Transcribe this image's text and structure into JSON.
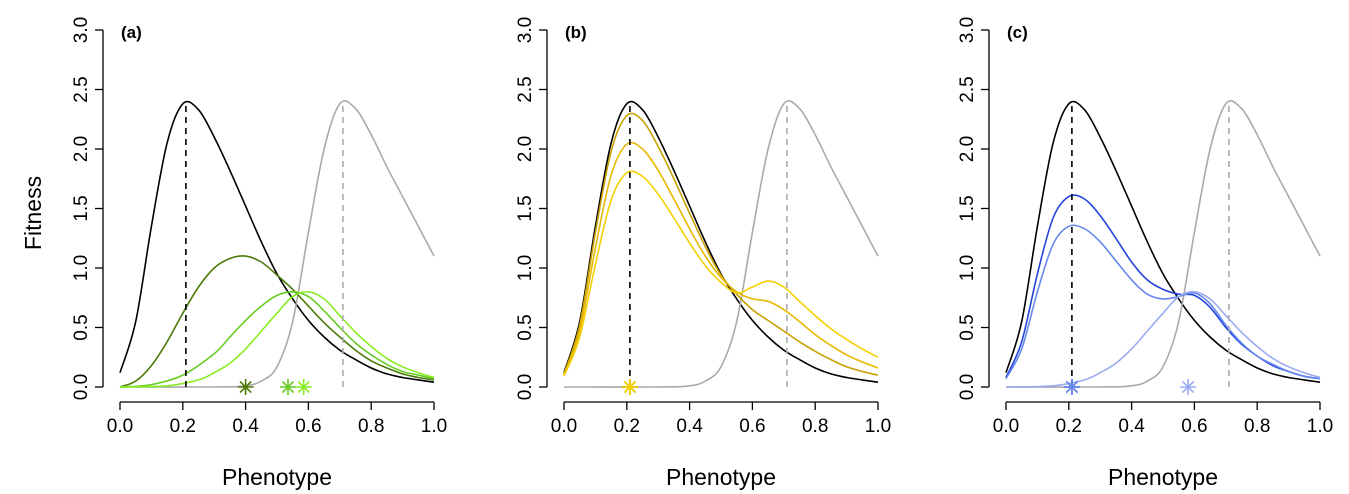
{
  "ylabel": "Fitness",
  "chart_data": [
    {
      "type": "line",
      "panel_label": "(a)",
      "xlabel": "Phenotype",
      "xlim": [
        0,
        1
      ],
      "ylim": [
        0,
        3
      ],
      "xticks": [
        "0.0",
        "0.2",
        "0.4",
        "0.6",
        "0.8",
        "1.0"
      ],
      "yticks": [
        "0.0",
        "0.5",
        "1.0",
        "1.5",
        "2.0",
        "2.5",
        "3.0"
      ],
      "series": [
        {
          "color": "#000000",
          "style": "solid",
          "x": [
            0,
            0.05,
            0.1,
            0.15,
            0.2,
            0.25,
            0.3,
            0.35,
            0.4,
            0.45,
            0.5,
            0.55,
            0.6,
            0.65,
            0.7,
            0.75,
            0.8,
            0.85,
            0.9,
            0.95,
            1.0
          ],
          "y": [
            0.12,
            0.55,
            1.35,
            2.05,
            2.38,
            2.33,
            2.1,
            1.82,
            1.52,
            1.22,
            0.95,
            0.74,
            0.56,
            0.42,
            0.31,
            0.23,
            0.16,
            0.11,
            0.08,
            0.06,
            0.04
          ]
        },
        {
          "color": "#aaaaaa",
          "style": "solid",
          "x": [
            0,
            0.3,
            0.4,
            0.45,
            0.5,
            0.55,
            0.6,
            0.65,
            0.7,
            0.75,
            0.8,
            0.85,
            0.9,
            0.95,
            1.0
          ],
          "y": [
            0,
            0,
            0.01,
            0.05,
            0.17,
            0.55,
            1.3,
            2.0,
            2.38,
            2.34,
            2.12,
            1.85,
            1.6,
            1.35,
            1.1
          ]
        },
        {
          "color": "#4d7a0a",
          "style": "solid",
          "x": [
            0,
            0.05,
            0.1,
            0.15,
            0.2,
            0.25,
            0.3,
            0.35,
            0.4,
            0.45,
            0.5,
            0.55,
            0.6,
            0.65,
            0.7,
            0.75,
            0.8,
            0.85,
            0.9,
            0.95,
            1.0
          ],
          "y": [
            0.0,
            0.05,
            0.18,
            0.38,
            0.62,
            0.84,
            1.0,
            1.08,
            1.1,
            1.05,
            0.94,
            0.82,
            0.68,
            0.54,
            0.42,
            0.31,
            0.22,
            0.16,
            0.11,
            0.08,
            0.06
          ]
        },
        {
          "color": "#66cc22",
          "style": "solid",
          "x": [
            0,
            0.1,
            0.2,
            0.3,
            0.35,
            0.4,
            0.45,
            0.5,
            0.55,
            0.6,
            0.65,
            0.7,
            0.75,
            0.8,
            0.85,
            0.9,
            0.95,
            1.0
          ],
          "y": [
            0,
            0.02,
            0.1,
            0.28,
            0.42,
            0.56,
            0.68,
            0.77,
            0.8,
            0.76,
            0.64,
            0.5,
            0.37,
            0.27,
            0.19,
            0.13,
            0.1,
            0.07
          ]
        },
        {
          "color": "#88ee22",
          "style": "solid",
          "x": [
            0,
            0.15,
            0.25,
            0.3,
            0.35,
            0.4,
            0.45,
            0.5,
            0.55,
            0.6,
            0.65,
            0.7,
            0.75,
            0.8,
            0.85,
            0.9,
            0.95,
            1.0
          ],
          "y": [
            0,
            0.01,
            0.06,
            0.12,
            0.2,
            0.32,
            0.47,
            0.62,
            0.76,
            0.8,
            0.74,
            0.6,
            0.46,
            0.34,
            0.24,
            0.17,
            0.12,
            0.08
          ]
        },
        {
          "color": "#000000",
          "style": "dashed",
          "x": [
            0.21,
            0.21
          ],
          "y": [
            0,
            2.4
          ]
        },
        {
          "color": "#aaaaaa",
          "style": "dashed",
          "x": [
            0.71,
            0.71
          ],
          "y": [
            0,
            2.4
          ]
        }
      ],
      "markers": [
        {
          "x": 0.4,
          "y": 0,
          "color": "#4d7a0a"
        },
        {
          "x": 0.535,
          "y": 0,
          "color": "#66cc22"
        },
        {
          "x": 0.585,
          "y": 0,
          "color": "#88ee22"
        }
      ]
    },
    {
      "type": "line",
      "panel_label": "(b)",
      "xlabel": "Phenotype",
      "xlim": [
        0,
        1
      ],
      "ylim": [
        0,
        3
      ],
      "xticks": [
        "0.0",
        "0.2",
        "0.4",
        "0.6",
        "0.8",
        "1.0"
      ],
      "yticks": [
        "0.0",
        "0.5",
        "1.0",
        "1.5",
        "2.0",
        "2.5",
        "3.0"
      ],
      "series": [
        {
          "color": "#000000",
          "style": "solid",
          "x": [
            0,
            0.05,
            0.1,
            0.15,
            0.2,
            0.25,
            0.3,
            0.35,
            0.4,
            0.45,
            0.5,
            0.55,
            0.6,
            0.65,
            0.7,
            0.75,
            0.8,
            0.85,
            0.9,
            0.95,
            1.0
          ],
          "y": [
            0.12,
            0.55,
            1.35,
            2.05,
            2.38,
            2.33,
            2.1,
            1.82,
            1.52,
            1.22,
            0.95,
            0.74,
            0.56,
            0.42,
            0.31,
            0.23,
            0.16,
            0.11,
            0.08,
            0.06,
            0.04
          ]
        },
        {
          "color": "#aaaaaa",
          "style": "solid",
          "x": [
            0,
            0.3,
            0.4,
            0.45,
            0.5,
            0.55,
            0.6,
            0.65,
            0.7,
            0.75,
            0.8,
            0.85,
            0.9,
            0.95,
            1.0
          ],
          "y": [
            0,
            0,
            0.01,
            0.05,
            0.17,
            0.55,
            1.3,
            2.0,
            2.38,
            2.34,
            2.12,
            1.85,
            1.6,
            1.35,
            1.1
          ]
        },
        {
          "color": "#c9a000",
          "style": "solid",
          "x": [
            0,
            0.05,
            0.1,
            0.15,
            0.2,
            0.25,
            0.3,
            0.35,
            0.4,
            0.45,
            0.5,
            0.55,
            0.6,
            0.65,
            0.7,
            0.75,
            0.8,
            0.85,
            0.9,
            0.95,
            1.0
          ],
          "y": [
            0.11,
            0.52,
            1.3,
            1.98,
            2.28,
            2.24,
            2.02,
            1.75,
            1.46,
            1.18,
            0.94,
            0.78,
            0.65,
            0.56,
            0.47,
            0.38,
            0.3,
            0.23,
            0.17,
            0.13,
            0.1
          ]
        },
        {
          "color": "#e8b800",
          "style": "solid",
          "x": [
            0,
            0.05,
            0.1,
            0.15,
            0.2,
            0.25,
            0.3,
            0.35,
            0.4,
            0.45,
            0.5,
            0.55,
            0.6,
            0.65,
            0.7,
            0.75,
            0.8,
            0.85,
            0.9,
            0.95,
            1.0
          ],
          "y": [
            0.1,
            0.47,
            1.17,
            1.78,
            2.04,
            2.0,
            1.82,
            1.58,
            1.33,
            1.1,
            0.92,
            0.8,
            0.74,
            0.72,
            0.65,
            0.55,
            0.44,
            0.35,
            0.27,
            0.21,
            0.16
          ]
        },
        {
          "color": "#f5d000",
          "style": "solid",
          "x": [
            0,
            0.05,
            0.1,
            0.15,
            0.2,
            0.25,
            0.3,
            0.35,
            0.4,
            0.45,
            0.5,
            0.55,
            0.6,
            0.65,
            0.7,
            0.75,
            0.8,
            0.85,
            0.9,
            0.95,
            1.0
          ],
          "y": [
            0.09,
            0.42,
            1.03,
            1.57,
            1.8,
            1.77,
            1.62,
            1.42,
            1.21,
            1.02,
            0.88,
            0.79,
            0.84,
            0.89,
            0.84,
            0.72,
            0.6,
            0.49,
            0.4,
            0.32,
            0.25
          ]
        },
        {
          "color": "#000000",
          "style": "dashed",
          "x": [
            0.21,
            0.21
          ],
          "y": [
            0,
            2.4
          ]
        },
        {
          "color": "#aaaaaa",
          "style": "dashed",
          "x": [
            0.71,
            0.71
          ],
          "y": [
            0,
            2.4
          ]
        }
      ],
      "markers": [
        {
          "x": 0.21,
          "y": 0,
          "color": "#c9a000"
        },
        {
          "x": 0.21,
          "y": 0,
          "color": "#e8b800"
        },
        {
          "x": 0.21,
          "y": 0,
          "color": "#f5d000"
        }
      ]
    },
    {
      "type": "line",
      "panel_label": "(c)",
      "xlabel": "Phenotype",
      "xlim": [
        0,
        1
      ],
      "ylim": [
        0,
        3
      ],
      "xticks": [
        "0.0",
        "0.2",
        "0.4",
        "0.6",
        "0.8",
        "1.0"
      ],
      "yticks": [
        "0.0",
        "0.5",
        "1.0",
        "1.5",
        "2.0",
        "2.5",
        "3.0"
      ],
      "series": [
        {
          "color": "#000000",
          "style": "solid",
          "x": [
            0,
            0.05,
            0.1,
            0.15,
            0.2,
            0.25,
            0.3,
            0.35,
            0.4,
            0.45,
            0.5,
            0.55,
            0.6,
            0.65,
            0.7,
            0.75,
            0.8,
            0.85,
            0.9,
            0.95,
            1.0
          ],
          "y": [
            0.12,
            0.55,
            1.35,
            2.05,
            2.38,
            2.33,
            2.1,
            1.82,
            1.52,
            1.22,
            0.95,
            0.74,
            0.56,
            0.42,
            0.31,
            0.23,
            0.16,
            0.11,
            0.08,
            0.06,
            0.04
          ]
        },
        {
          "color": "#aaaaaa",
          "style": "solid",
          "x": [
            0,
            0.3,
            0.4,
            0.45,
            0.5,
            0.55,
            0.6,
            0.65,
            0.7,
            0.75,
            0.8,
            0.85,
            0.9,
            0.95,
            1.0
          ],
          "y": [
            0,
            0,
            0.01,
            0.05,
            0.17,
            0.55,
            1.3,
            2.0,
            2.38,
            2.34,
            2.12,
            1.85,
            1.6,
            1.35,
            1.1
          ]
        },
        {
          "color": "#2244dd",
          "style": "solid",
          "x": [
            0,
            0.05,
            0.1,
            0.15,
            0.2,
            0.25,
            0.3,
            0.35,
            0.4,
            0.45,
            0.5,
            0.55,
            0.6,
            0.65,
            0.7,
            0.75,
            0.8,
            0.85,
            0.9,
            0.95,
            1.0
          ],
          "y": [
            0.08,
            0.38,
            0.95,
            1.42,
            1.6,
            1.58,
            1.44,
            1.25,
            1.05,
            0.9,
            0.82,
            0.78,
            0.77,
            0.67,
            0.5,
            0.36,
            0.26,
            0.18,
            0.13,
            0.09,
            0.07
          ]
        },
        {
          "color": "#6688ee",
          "style": "solid",
          "x": [
            0,
            0.05,
            0.1,
            0.15,
            0.2,
            0.25,
            0.3,
            0.35,
            0.4,
            0.45,
            0.5,
            0.55,
            0.6,
            0.65,
            0.7,
            0.75,
            0.8,
            0.85,
            0.9,
            0.95,
            1.0
          ],
          "y": [
            0.07,
            0.32,
            0.8,
            1.2,
            1.35,
            1.33,
            1.22,
            1.06,
            0.9,
            0.78,
            0.74,
            0.76,
            0.79,
            0.7,
            0.52,
            0.37,
            0.26,
            0.19,
            0.13,
            0.09,
            0.07
          ]
        },
        {
          "color": "#99aaf0",
          "style": "solid",
          "x": [
            0,
            0.15,
            0.25,
            0.3,
            0.35,
            0.4,
            0.45,
            0.5,
            0.55,
            0.6,
            0.65,
            0.7,
            0.75,
            0.8,
            0.85,
            0.9,
            0.95,
            1.0
          ],
          "y": [
            0,
            0.01,
            0.06,
            0.12,
            0.2,
            0.32,
            0.47,
            0.62,
            0.76,
            0.8,
            0.74,
            0.6,
            0.46,
            0.34,
            0.24,
            0.17,
            0.12,
            0.08
          ]
        },
        {
          "color": "#000000",
          "style": "dashed",
          "x": [
            0.21,
            0.21
          ],
          "y": [
            0,
            2.4
          ]
        },
        {
          "color": "#aaaaaa",
          "style": "dashed",
          "x": [
            0.71,
            0.71
          ],
          "y": [
            0,
            2.4
          ]
        }
      ],
      "markers": [
        {
          "x": 0.21,
          "y": 0,
          "color": "#2244dd"
        },
        {
          "x": 0.21,
          "y": 0,
          "color": "#6688ee"
        },
        {
          "x": 0.58,
          "y": 0,
          "color": "#99aaf0"
        }
      ]
    }
  ]
}
